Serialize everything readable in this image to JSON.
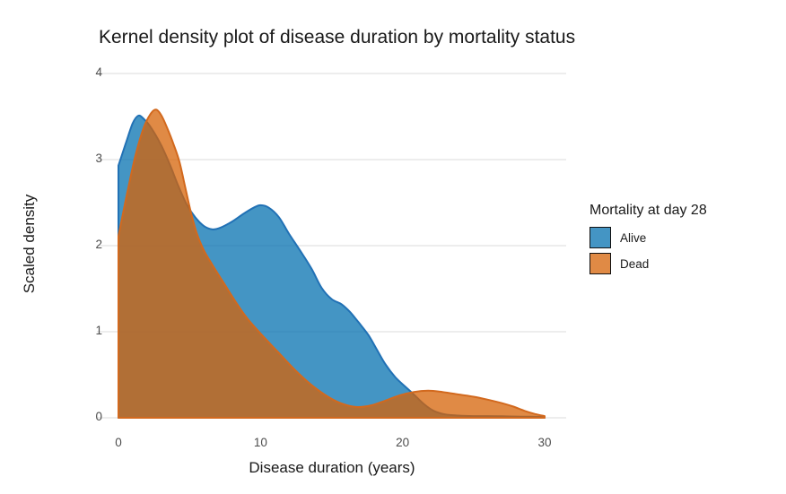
{
  "title": "Kernel density plot of disease duration by mortality status",
  "legend": {
    "title": "Mortality at day 28",
    "items": [
      {
        "label": "Alive"
      },
      {
        "label": "Dead"
      }
    ]
  },
  "colors": {
    "background": "#FFFFFF",
    "grid": "#E7E7E7",
    "tick_text": "#4D4D4D",
    "text": "#191919"
  },
  "chart_data": {
    "type": "area",
    "subtype": "kernel-density",
    "title": "Kernel density plot of disease duration by mortality status",
    "xlabel": "Disease duration (years)",
    "ylabel": "Scaled density",
    "xlim": [
      0,
      30
    ],
    "ylim": [
      0,
      4
    ],
    "xticks": [
      0,
      10,
      20,
      30
    ],
    "yticks": [
      0,
      1,
      2,
      3,
      4
    ],
    "grid": "horizontal-major-only",
    "legend_position": "right",
    "legend_title": "Mortality at day 28",
    "series": [
      {
        "name": "Alive",
        "fill": "#0571B0",
        "stroke": "#2171B5",
        "fill_opacity": 0.75,
        "legend_swatch": "#4495C4",
        "points": [
          [
            0,
            2.93
          ],
          [
            0.5,
            3.18
          ],
          [
            1,
            3.42
          ],
          [
            1.4,
            3.51
          ],
          [
            1.8,
            3.47
          ],
          [
            2.3,
            3.37
          ],
          [
            3,
            3.17
          ],
          [
            3.6,
            2.95
          ],
          [
            4.2,
            2.7
          ],
          [
            4.8,
            2.48
          ],
          [
            5.4,
            2.33
          ],
          [
            6,
            2.23
          ],
          [
            6.6,
            2.19
          ],
          [
            7.2,
            2.21
          ],
          [
            8,
            2.28
          ],
          [
            8.8,
            2.37
          ],
          [
            9.5,
            2.44
          ],
          [
            10,
            2.47
          ],
          [
            10.6,
            2.44
          ],
          [
            11.3,
            2.33
          ],
          [
            12,
            2.14
          ],
          [
            12.8,
            1.94
          ],
          [
            13.6,
            1.73
          ],
          [
            14.3,
            1.51
          ],
          [
            15,
            1.38
          ],
          [
            15.7,
            1.32
          ],
          [
            16.3,
            1.23
          ],
          [
            16.9,
            1.11
          ],
          [
            17.6,
            0.96
          ],
          [
            18.2,
            0.79
          ],
          [
            18.8,
            0.62
          ],
          [
            19.5,
            0.47
          ],
          [
            20.2,
            0.36
          ],
          [
            20.8,
            0.27
          ],
          [
            21.5,
            0.16
          ],
          [
            22.2,
            0.08
          ],
          [
            23,
            0.04
          ],
          [
            24,
            0.025
          ],
          [
            25,
            0.02
          ],
          [
            26,
            0.02
          ],
          [
            27,
            0.018
          ],
          [
            28,
            0.015
          ],
          [
            29,
            0.012
          ],
          [
            30,
            0.01
          ]
        ]
      },
      {
        "name": "Dead",
        "fill": "#D66307",
        "stroke": "#D2691E",
        "fill_opacity": 0.75,
        "legend_swatch": "#E08A45",
        "points": [
          [
            0,
            2.11
          ],
          [
            0.6,
            2.6
          ],
          [
            1.2,
            3.05
          ],
          [
            1.8,
            3.38
          ],
          [
            2.3,
            3.54
          ],
          [
            2.65,
            3.58
          ],
          [
            3,
            3.52
          ],
          [
            3.4,
            3.38
          ],
          [
            3.9,
            3.17
          ],
          [
            4.3,
            2.97
          ],
          [
            4.7,
            2.68
          ],
          [
            5.1,
            2.39
          ],
          [
            5.5,
            2.15
          ],
          [
            6,
            1.95
          ],
          [
            6.6,
            1.78
          ],
          [
            7.4,
            1.57
          ],
          [
            8.2,
            1.36
          ],
          [
            9,
            1.17
          ],
          [
            10,
            0.98
          ],
          [
            11.2,
            0.77
          ],
          [
            12.4,
            0.56
          ],
          [
            13.6,
            0.38
          ],
          [
            14.8,
            0.24
          ],
          [
            15.8,
            0.16
          ],
          [
            16.8,
            0.125
          ],
          [
            17.8,
            0.145
          ],
          [
            18.8,
            0.2
          ],
          [
            19.8,
            0.26
          ],
          [
            20.8,
            0.3
          ],
          [
            21.8,
            0.315
          ],
          [
            22.8,
            0.3
          ],
          [
            24,
            0.27
          ],
          [
            25,
            0.245
          ],
          [
            26,
            0.21
          ],
          [
            27,
            0.17
          ],
          [
            27.8,
            0.13
          ],
          [
            28.6,
            0.08
          ],
          [
            29.3,
            0.045
          ],
          [
            30,
            0.02
          ]
        ]
      }
    ]
  }
}
